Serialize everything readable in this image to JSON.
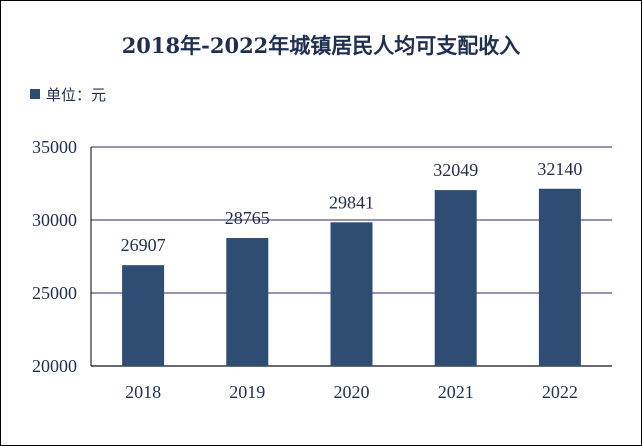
{
  "chart_data": {
    "type": "bar",
    "title": "2018年-2022年城镇居民人均可支配收入",
    "unit_label": "单位：元",
    "categories": [
      "2018",
      "2019",
      "2020",
      "2021",
      "2022"
    ],
    "series": [
      {
        "values": [
          26907,
          28765,
          29841,
          32049,
          32140
        ]
      }
    ],
    "value_labels": [
      "26907",
      "28765",
      "29841",
      "32049",
      "32140"
    ],
    "ylim": [
      20000,
      35000
    ],
    "yticks": [
      20000,
      25000,
      30000,
      35000
    ],
    "ytick_labels": [
      "20000",
      "25000",
      "30000",
      "35000"
    ],
    "grid": true,
    "legend_position": "top-left",
    "bar_color": "#2f4d73",
    "grid_color": "#5a4f8a",
    "text_color": "#1f2f4f"
  }
}
